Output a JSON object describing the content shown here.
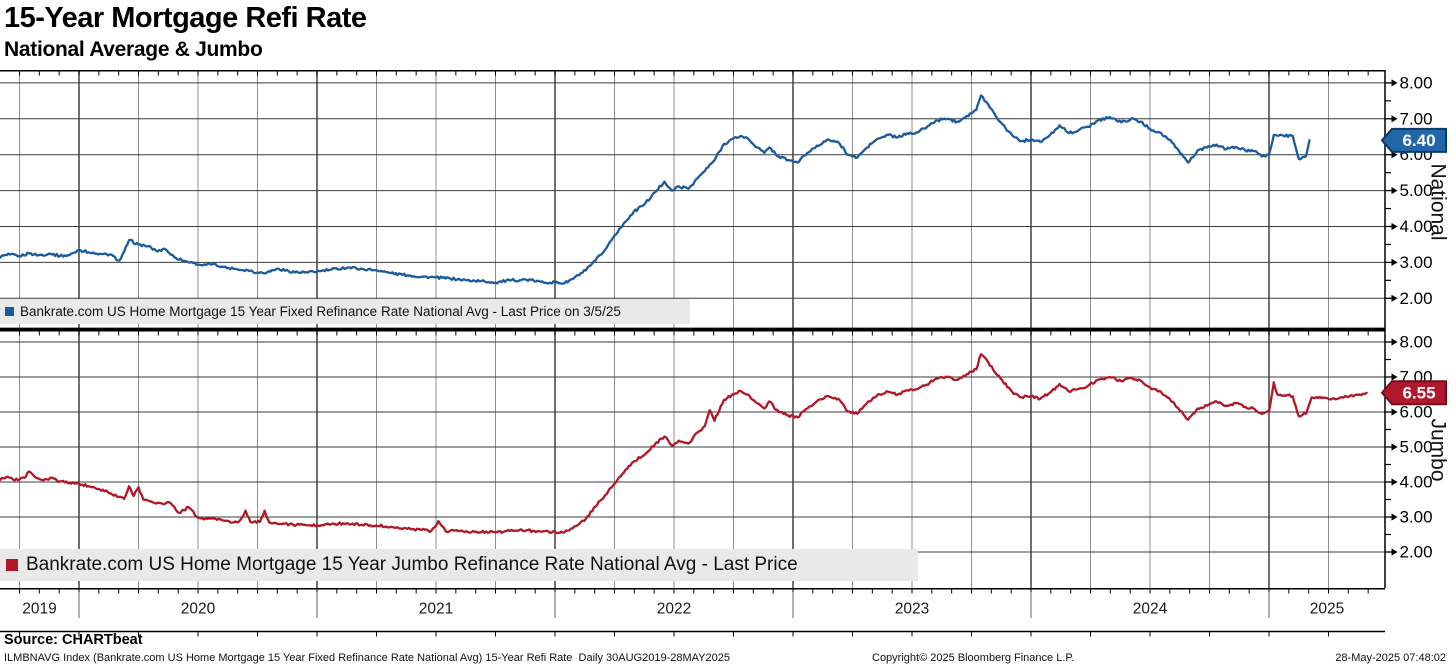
{
  "header": {
    "title": "15-Year Mortgage Refi Rate",
    "subtitle": "National Average & Jumbo"
  },
  "x_axis": {
    "year_labels": [
      "2019",
      "2020",
      "2021",
      "2022",
      "2023",
      "2024",
      "2025"
    ],
    "range": "30AUG2019-28MAY2025",
    "frequency": "Daily"
  },
  "footer": {
    "source": "Source: CHARTbeat",
    "description": "ILMBNAVG Index (Bankrate.com US Home Mortgage 15 Year Fixed Refinance Rate National Avg) 15-Year Refi Rate  Daily 30AUG2019-28MAY2025",
    "copyright": "Copyright© 2025 Bloomberg Finance L.P.",
    "timestamp": "28-May-2025 07:48:02"
  },
  "chart_data": [
    {
      "type": "line",
      "panel_title": "National",
      "legend": "Bankrate.com US Home Mortgage 15 Year Fixed Refinance Rate National Avg - Last Price on 3/5/25",
      "color": "#1b5a9c",
      "tag_fill": "#2166a8",
      "tag_border": "#0d3a66",
      "last_price": 6.4,
      "last_price_label": "6.40",
      "ylim": [
        2,
        8
      ],
      "yticks": [
        2,
        3,
        4,
        5,
        6,
        7,
        8
      ],
      "grid": true,
      "legend_position": "bottom-left",
      "x_decimal_years_range": [
        2019.663,
        2025.17
      ],
      "points": [
        [
          2019.663,
          3.15
        ],
        [
          2019.71,
          3.22
        ],
        [
          2019.75,
          3.18
        ],
        [
          2019.79,
          3.25
        ],
        [
          2019.83,
          3.2
        ],
        [
          2019.88,
          3.24
        ],
        [
          2019.92,
          3.18
        ],
        [
          2019.96,
          3.2
        ],
        [
          2020.0,
          3.35
        ],
        [
          2020.04,
          3.28
        ],
        [
          2020.08,
          3.22
        ],
        [
          2020.13,
          3.22
        ],
        [
          2020.17,
          3.05
        ],
        [
          2020.19,
          3.3
        ],
        [
          2020.21,
          3.62
        ],
        [
          2020.25,
          3.5
        ],
        [
          2020.29,
          3.45
        ],
        [
          2020.33,
          3.3
        ],
        [
          2020.36,
          3.38
        ],
        [
          2020.4,
          3.15
        ],
        [
          2020.44,
          3.05
        ],
        [
          2020.48,
          2.98
        ],
        [
          2020.52,
          2.92
        ],
        [
          2020.56,
          2.95
        ],
        [
          2020.6,
          2.88
        ],
        [
          2020.65,
          2.82
        ],
        [
          2020.71,
          2.78
        ],
        [
          2020.75,
          2.72
        ],
        [
          2020.79,
          2.72
        ],
        [
          2020.83,
          2.82
        ],
        [
          2020.88,
          2.76
        ],
        [
          2020.92,
          2.72
        ],
        [
          2020.96,
          2.72
        ],
        [
          2021.0,
          2.74
        ],
        [
          2021.06,
          2.8
        ],
        [
          2021.13,
          2.86
        ],
        [
          2021.19,
          2.82
        ],
        [
          2021.25,
          2.78
        ],
        [
          2021.31,
          2.7
        ],
        [
          2021.38,
          2.64
        ],
        [
          2021.44,
          2.6
        ],
        [
          2021.5,
          2.58
        ],
        [
          2021.56,
          2.55
        ],
        [
          2021.63,
          2.5
        ],
        [
          2021.69,
          2.48
        ],
        [
          2021.75,
          2.44
        ],
        [
          2021.81,
          2.5
        ],
        [
          2021.88,
          2.52
        ],
        [
          2021.94,
          2.46
        ],
        [
          2022.0,
          2.44
        ],
        [
          2022.04,
          2.42
        ],
        [
          2022.08,
          2.56
        ],
        [
          2022.13,
          2.78
        ],
        [
          2022.17,
          3.05
        ],
        [
          2022.21,
          3.35
        ],
        [
          2022.25,
          3.75
        ],
        [
          2022.29,
          4.1
        ],
        [
          2022.33,
          4.4
        ],
        [
          2022.38,
          4.65
        ],
        [
          2022.42,
          4.95
        ],
        [
          2022.46,
          5.25
        ],
        [
          2022.49,
          5.0
        ],
        [
          2022.52,
          5.12
        ],
        [
          2022.56,
          5.05
        ],
        [
          2022.6,
          5.35
        ],
        [
          2022.63,
          5.55
        ],
        [
          2022.67,
          5.85
        ],
        [
          2022.71,
          6.3
        ],
        [
          2022.75,
          6.45
        ],
        [
          2022.78,
          6.52
        ],
        [
          2022.81,
          6.45
        ],
        [
          2022.85,
          6.2
        ],
        [
          2022.88,
          6.05
        ],
        [
          2022.9,
          6.2
        ],
        [
          2022.94,
          5.95
        ],
        [
          2022.98,
          5.85
        ],
        [
          2023.02,
          5.78
        ],
        [
          2023.06,
          6.05
        ],
        [
          2023.1,
          6.25
        ],
        [
          2023.15,
          6.42
        ],
        [
          2023.19,
          6.35
        ],
        [
          2023.23,
          6.0
        ],
        [
          2023.27,
          5.92
        ],
        [
          2023.31,
          6.2
        ],
        [
          2023.35,
          6.42
        ],
        [
          2023.4,
          6.55
        ],
        [
          2023.44,
          6.48
        ],
        [
          2023.48,
          6.6
        ],
        [
          2023.52,
          6.62
        ],
        [
          2023.56,
          6.75
        ],
        [
          2023.6,
          6.95
        ],
        [
          2023.65,
          7.0
        ],
        [
          2023.69,
          6.92
        ],
        [
          2023.73,
          7.08
        ],
        [
          2023.77,
          7.25
        ],
        [
          2023.79,
          7.65
        ],
        [
          2023.82,
          7.4
        ],
        [
          2023.85,
          7.1
        ],
        [
          2023.88,
          6.85
        ],
        [
          2023.92,
          6.55
        ],
        [
          2023.96,
          6.38
        ],
        [
          2024.0,
          6.42
        ],
        [
          2024.04,
          6.35
        ],
        [
          2024.08,
          6.55
        ],
        [
          2024.12,
          6.82
        ],
        [
          2024.16,
          6.6
        ],
        [
          2024.2,
          6.68
        ],
        [
          2024.24,
          6.78
        ],
        [
          2024.28,
          6.95
        ],
        [
          2024.33,
          7.05
        ],
        [
          2024.38,
          6.9
        ],
        [
          2024.42,
          7.0
        ],
        [
          2024.46,
          6.92
        ],
        [
          2024.5,
          6.72
        ],
        [
          2024.54,
          6.62
        ],
        [
          2024.58,
          6.42
        ],
        [
          2024.62,
          6.12
        ],
        [
          2024.66,
          5.78
        ],
        [
          2024.7,
          6.12
        ],
        [
          2024.74,
          6.2
        ],
        [
          2024.78,
          6.28
        ],
        [
          2024.82,
          6.15
        ],
        [
          2024.86,
          6.22
        ],
        [
          2024.9,
          6.12
        ],
        [
          2024.94,
          6.1
        ],
        [
          2024.97,
          5.95
        ],
        [
          2025.0,
          6.0
        ],
        [
          2025.02,
          6.55
        ],
        [
          2025.06,
          6.53
        ],
        [
          2025.1,
          6.52
        ],
        [
          2025.125,
          5.88
        ],
        [
          2025.155,
          5.95
        ],
        [
          2025.17,
          6.4
        ]
      ]
    },
    {
      "type": "line",
      "panel_title": "Jumbo",
      "legend": "Bankrate.com US Home Mortgage 15 Year Jumbo Refinance Rate National Avg - Last Price",
      "color": "#b01728",
      "tag_fill": "#b2182b",
      "tag_border": "#6f0f1c",
      "last_price": 6.55,
      "last_price_label": "6.55",
      "ylim": [
        2,
        8
      ],
      "yticks": [
        2,
        3,
        4,
        5,
        6,
        7,
        8
      ],
      "grid": true,
      "legend_position": "bottom-left",
      "x_decimal_years_range": [
        2019.663,
        2025.41
      ],
      "points": [
        [
          2019.663,
          4.08
        ],
        [
          2019.7,
          4.15
        ],
        [
          2019.73,
          4.05
        ],
        [
          2019.77,
          4.12
        ],
        [
          2019.79,
          4.3
        ],
        [
          2019.82,
          4.12
        ],
        [
          2019.85,
          4.05
        ],
        [
          2019.88,
          4.12
        ],
        [
          2019.92,
          4.02
        ],
        [
          2019.96,
          3.98
        ],
        [
          2020.0,
          3.95
        ],
        [
          2020.04,
          3.88
        ],
        [
          2020.08,
          3.8
        ],
        [
          2020.12,
          3.72
        ],
        [
          2020.16,
          3.58
        ],
        [
          2020.19,
          3.52
        ],
        [
          2020.21,
          3.88
        ],
        [
          2020.23,
          3.6
        ],
        [
          2020.25,
          3.85
        ],
        [
          2020.27,
          3.5
        ],
        [
          2020.31,
          3.42
        ],
        [
          2020.35,
          3.38
        ],
        [
          2020.38,
          3.42
        ],
        [
          2020.42,
          3.12
        ],
        [
          2020.46,
          3.28
        ],
        [
          2020.5,
          2.98
        ],
        [
          2020.54,
          2.95
        ],
        [
          2020.58,
          2.92
        ],
        [
          2020.63,
          2.88
        ],
        [
          2020.67,
          2.86
        ],
        [
          2020.7,
          3.18
        ],
        [
          2020.72,
          2.86
        ],
        [
          2020.76,
          2.86
        ],
        [
          2020.78,
          3.18
        ],
        [
          2020.8,
          2.84
        ],
        [
          2020.85,
          2.8
        ],
        [
          2020.9,
          2.78
        ],
        [
          2020.96,
          2.76
        ],
        [
          2021.0,
          2.76
        ],
        [
          2021.06,
          2.8
        ],
        [
          2021.13,
          2.82
        ],
        [
          2021.19,
          2.78
        ],
        [
          2021.25,
          2.76
        ],
        [
          2021.31,
          2.72
        ],
        [
          2021.38,
          2.66
        ],
        [
          2021.44,
          2.63
        ],
        [
          2021.48,
          2.6
        ],
        [
          2021.51,
          2.88
        ],
        [
          2021.54,
          2.6
        ],
        [
          2021.6,
          2.6
        ],
        [
          2021.67,
          2.58
        ],
        [
          2021.75,
          2.56
        ],
        [
          2021.81,
          2.6
        ],
        [
          2021.88,
          2.62
        ],
        [
          2021.94,
          2.58
        ],
        [
          2022.0,
          2.58
        ],
        [
          2022.04,
          2.56
        ],
        [
          2022.08,
          2.72
        ],
        [
          2022.13,
          2.95
        ],
        [
          2022.17,
          3.3
        ],
        [
          2022.21,
          3.62
        ],
        [
          2022.25,
          3.95
        ],
        [
          2022.29,
          4.28
        ],
        [
          2022.33,
          4.58
        ],
        [
          2022.38,
          4.8
        ],
        [
          2022.42,
          5.08
        ],
        [
          2022.46,
          5.3
        ],
        [
          2022.49,
          5.05
        ],
        [
          2022.52,
          5.18
        ],
        [
          2022.56,
          5.1
        ],
        [
          2022.6,
          5.42
        ],
        [
          2022.63,
          5.6
        ],
        [
          2022.65,
          6.05
        ],
        [
          2022.67,
          5.75
        ],
        [
          2022.71,
          6.35
        ],
        [
          2022.75,
          6.5
        ],
        [
          2022.78,
          6.6
        ],
        [
          2022.81,
          6.5
        ],
        [
          2022.85,
          6.25
        ],
        [
          2022.88,
          6.1
        ],
        [
          2022.9,
          6.3
        ],
        [
          2022.94,
          6.0
        ],
        [
          2022.98,
          5.9
        ],
        [
          2023.02,
          5.85
        ],
        [
          2023.06,
          6.1
        ],
        [
          2023.1,
          6.3
        ],
        [
          2023.15,
          6.45
        ],
        [
          2023.19,
          6.38
        ],
        [
          2023.23,
          6.02
        ],
        [
          2023.27,
          5.95
        ],
        [
          2023.31,
          6.25
        ],
        [
          2023.35,
          6.45
        ],
        [
          2023.4,
          6.58
        ],
        [
          2023.44,
          6.5
        ],
        [
          2023.48,
          6.62
        ],
        [
          2023.52,
          6.65
        ],
        [
          2023.56,
          6.78
        ],
        [
          2023.6,
          6.95
        ],
        [
          2023.65,
          7.0
        ],
        [
          2023.69,
          6.92
        ],
        [
          2023.73,
          7.08
        ],
        [
          2023.77,
          7.22
        ],
        [
          2023.79,
          7.65
        ],
        [
          2023.82,
          7.42
        ],
        [
          2023.85,
          7.12
        ],
        [
          2023.88,
          6.9
        ],
        [
          2023.92,
          6.58
        ],
        [
          2023.96,
          6.42
        ],
        [
          2024.0,
          6.45
        ],
        [
          2024.04,
          6.38
        ],
        [
          2024.08,
          6.55
        ],
        [
          2024.12,
          6.8
        ],
        [
          2024.16,
          6.58
        ],
        [
          2024.2,
          6.66
        ],
        [
          2024.24,
          6.75
        ],
        [
          2024.28,
          6.92
        ],
        [
          2024.33,
          7.0
        ],
        [
          2024.38,
          6.88
        ],
        [
          2024.42,
          6.98
        ],
        [
          2024.46,
          6.9
        ],
        [
          2024.5,
          6.7
        ],
        [
          2024.54,
          6.6
        ],
        [
          2024.58,
          6.4
        ],
        [
          2024.62,
          6.1
        ],
        [
          2024.66,
          5.78
        ],
        [
          2024.7,
          6.1
        ],
        [
          2024.74,
          6.18
        ],
        [
          2024.78,
          6.3
        ],
        [
          2024.82,
          6.18
        ],
        [
          2024.86,
          6.25
        ],
        [
          2024.9,
          6.15
        ],
        [
          2024.94,
          6.08
        ],
        [
          2024.97,
          5.95
        ],
        [
          2025.0,
          6.02
        ],
        [
          2025.02,
          6.85
        ],
        [
          2025.035,
          6.5
        ],
        [
          2025.08,
          6.48
        ],
        [
          2025.1,
          6.45
        ],
        [
          2025.125,
          5.88
        ],
        [
          2025.155,
          5.95
        ],
        [
          2025.18,
          6.42
        ],
        [
          2025.22,
          6.4
        ],
        [
          2025.26,
          6.36
        ],
        [
          2025.3,
          6.42
        ],
        [
          2025.34,
          6.46
        ],
        [
          2025.38,
          6.5
        ],
        [
          2025.41,
          6.55
        ]
      ]
    }
  ]
}
